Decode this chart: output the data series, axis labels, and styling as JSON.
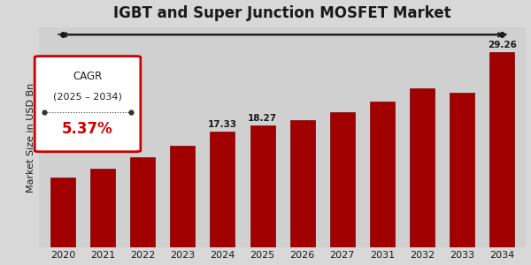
{
  "title": "IGBT and Super Junction MOSFET Market",
  "ylabel": "Market Size in USD Bn",
  "categories": [
    "2020",
    "2021",
    "2022",
    "2023",
    "2024",
    "2025",
    "2026",
    "2027",
    "2031",
    "2032",
    "2033",
    "2034"
  ],
  "values": [
    10.5,
    11.8,
    13.5,
    15.2,
    17.33,
    18.27,
    19.1,
    20.3,
    21.8,
    23.8,
    23.2,
    29.26
  ],
  "bar_color": "#a00000",
  "bar_edge_color": "#7a0000",
  "background_color": "#d8d8d8",
  "axes_bg_color": "#d0d0d0",
  "text_color": "#1a1a1a",
  "grid_color": "#b0b0b0",
  "label_values": {
    "4": "17.33",
    "5": "18.27",
    "11": "29.26"
  },
  "cagr_text1": "CAGR",
  "cagr_text2": "(2025 – 2034)",
  "cagr_value": "5.37%",
  "cagr_value_color": "#cc0000",
  "box_edge_color": "#cc0000",
  "box_face_color": "#ffffff",
  "arrow_color": "#1a1a1a",
  "title_fontsize": 12,
  "ylabel_fontsize": 8,
  "tick_fontsize": 8,
  "bar_label_fontsize": 7.5,
  "ylim_max": 33
}
